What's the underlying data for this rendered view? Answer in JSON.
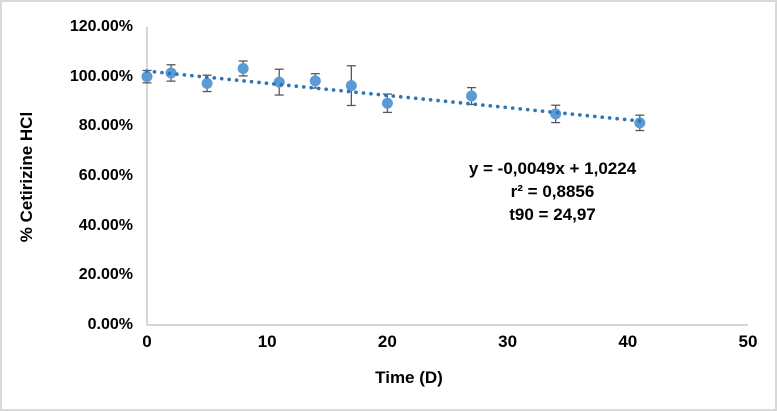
{
  "chart_data": {
    "type": "scatter",
    "title": "",
    "xlabel": "Time (D)",
    "ylabel": "% Cetirizine HCl",
    "xlim": [
      0,
      50
    ],
    "ylim_percent": [
      0,
      120
    ],
    "xtick_labels": [
      "0",
      "10",
      "20",
      "30",
      "40",
      "50"
    ],
    "ytick_labels": [
      "120.00%",
      "100.00%",
      "80.00%",
      "60.00%",
      "40.00%",
      "20.00%",
      "0.00%"
    ],
    "grid": false,
    "legend": "none",
    "series": [
      {
        "name": "% Cetirizine HCl",
        "marker": "circle",
        "x": [
          0,
          2,
          5,
          8,
          11,
          14,
          17,
          20,
          27,
          34,
          41
        ],
        "y_percent": [
          100.0,
          101.5,
          97.3,
          103.3,
          97.8,
          98.3,
          96.4,
          89.3,
          92.2,
          85.0,
          81.4
        ],
        "y_error_percent": [
          2.5,
          3.3,
          3.3,
          3.0,
          5.2,
          2.9,
          8.0,
          3.7,
          3.4,
          3.5,
          3.1
        ]
      }
    ],
    "trendline": {
      "style": "dotted",
      "slope_percent_per_day": -0.49,
      "intercept_percent": 102.24,
      "x_start": 0,
      "x_end": 41.3
    },
    "annotation": {
      "equation": "y = -0,0049x + 1,0224",
      "r_squared": "r² = 0,8856",
      "t90": "t90 = 24,97"
    },
    "colors": {
      "marker": "#5B9BD5",
      "trendline": "#2E75B6",
      "error_bar": "#595959",
      "axis_line": "#BFBFBF",
      "text": "#000000",
      "frame_border": "#D9D9D9"
    }
  }
}
